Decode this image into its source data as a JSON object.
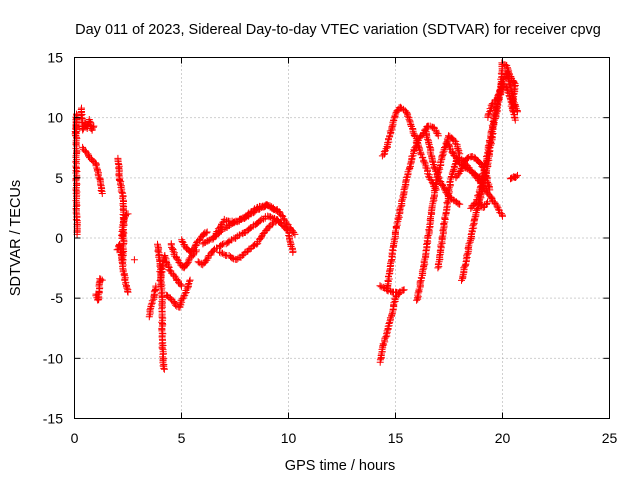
{
  "chart_data": {
    "type": "scatter",
    "title": "Day 011 of 2023, Sidereal Day-to-day VTEC variation (SDTVAR) for receiver cpvg",
    "xlabel": "GPS time / hours",
    "ylabel": "SDTVAR / TECUs",
    "xlim": [
      0,
      25
    ],
    "ylim": [
      -15,
      15
    ],
    "xticks": [
      0,
      5,
      10,
      15,
      20,
      25
    ],
    "yticks": [
      -15,
      -10,
      -5,
      0,
      5,
      10,
      15
    ],
    "grid": true,
    "marker": "+",
    "color": "#ff0000",
    "series": [
      {
        "name": "SDTVAR",
        "tracks": [
          [
            [
              0.05,
              8.5
            ],
            [
              0.1,
              10.3
            ],
            [
              0.08,
              8.0
            ],
            [
              0.1,
              3.0
            ],
            [
              0.12,
              0.3
            ]
          ],
          [
            [
              0.3,
              10.8
            ],
            [
              0.4,
              9.0
            ],
            [
              0.5,
              9.5
            ],
            [
              0.6,
              9.1
            ],
            [
              0.7,
              9.8
            ],
            [
              0.8,
              9.0
            ],
            [
              0.9,
              9.3
            ]
          ],
          [
            [
              0.4,
              7.5
            ],
            [
              0.6,
              7.0
            ],
            [
              0.8,
              6.5
            ],
            [
              1.0,
              6.2
            ],
            [
              1.1,
              5.4
            ],
            [
              1.2,
              4.8
            ],
            [
              1.3,
              3.7
            ]
          ],
          [
            [
              1.0,
              -4.7
            ],
            [
              1.1,
              -5.2
            ],
            [
              1.15,
              -4.5
            ],
            [
              1.2,
              -3.4
            ],
            [
              1.3,
              -3.5
            ]
          ],
          [
            [
              2.05,
              6.6
            ],
            [
              2.1,
              5.0
            ],
            [
              2.2,
              4.2
            ],
            [
              2.3,
              2.5
            ],
            [
              2.3,
              0.5
            ],
            [
              2.25,
              -2.0
            ]
          ],
          [
            [
              2.0,
              -1.0
            ],
            [
              2.1,
              -0.5
            ],
            [
              2.2,
              -1.5
            ],
            [
              2.3,
              -2.8
            ],
            [
              2.4,
              -3.8
            ],
            [
              2.5,
              -4.5
            ]
          ],
          [
            [
              2.2,
              0.0
            ],
            [
              2.3,
              1.5
            ],
            [
              2.4,
              1.9
            ],
            [
              2.5,
              2.0
            ]
          ],
          [
            [
              2.8,
              -1.8
            ]
          ],
          [
            [
              3.5,
              -6.5
            ],
            [
              3.6,
              -5.5
            ],
            [
              3.7,
              -5.0
            ],
            [
              3.8,
              -4.0
            ]
          ],
          [
            [
              3.9,
              -0.5
            ],
            [
              4.0,
              -2.5
            ],
            [
              4.1,
              -5.0
            ],
            [
              4.1,
              -8.0
            ],
            [
              4.15,
              -10.5
            ],
            [
              4.2,
              -10.9
            ]
          ],
          [
            [
              4.0,
              -3.5
            ],
            [
              4.2,
              -1.5
            ],
            [
              4.4,
              -2.5
            ],
            [
              4.6,
              -3.0
            ],
            [
              4.8,
              -3.5
            ],
            [
              5.0,
              -4.0
            ]
          ],
          [
            [
              4.3,
              -4.8
            ],
            [
              4.5,
              -5.0
            ],
            [
              4.7,
              -5.5
            ],
            [
              4.9,
              -5.8
            ],
            [
              5.0,
              -5.2
            ],
            [
              5.2,
              -4.5
            ],
            [
              5.4,
              -3.5
            ]
          ],
          [
            [
              4.5,
              -0.5
            ],
            [
              4.7,
              -1.5
            ],
            [
              4.9,
              -2.0
            ],
            [
              5.1,
              -2.5
            ],
            [
              5.3,
              -2.0
            ],
            [
              5.5,
              -1.5
            ],
            [
              5.7,
              -1.0
            ]
          ],
          [
            [
              5.0,
              -0.2
            ],
            [
              5.2,
              -0.8
            ],
            [
              5.4,
              -1.2
            ],
            [
              5.6,
              -0.8
            ],
            [
              5.8,
              -0.2
            ],
            [
              6.0,
              0.3
            ],
            [
              6.2,
              0.5
            ]
          ],
          [
            [
              5.8,
              -2.0
            ],
            [
              6.0,
              -2.2
            ],
            [
              6.2,
              -1.8
            ],
            [
              6.5,
              -1.0
            ],
            [
              7.0,
              -0.5
            ],
            [
              7.5,
              0.0
            ],
            [
              8.0,
              0.5
            ],
            [
              8.5,
              1.2
            ],
            [
              9.0,
              1.8
            ],
            [
              9.5,
              1.5
            ],
            [
              10.0,
              0.5
            ],
            [
              10.2,
              -1.2
            ]
          ],
          [
            [
              6.0,
              -0.5
            ],
            [
              6.5,
              0.0
            ],
            [
              7.0,
              0.8
            ],
            [
              7.5,
              1.3
            ],
            [
              8.0,
              1.7
            ],
            [
              8.5,
              2.3
            ],
            [
              9.0,
              2.7
            ],
            [
              9.5,
              2.3
            ],
            [
              10.0,
              1.0
            ],
            [
              10.3,
              0.3
            ]
          ],
          [
            [
              6.5,
              0.0
            ],
            [
              7.0,
              1.5
            ],
            [
              7.5,
              1.3
            ],
            [
              8.0,
              1.8
            ],
            [
              8.5,
              2.5
            ],
            [
              9.0,
              2.8
            ],
            [
              9.5,
              2.2
            ]
          ],
          [
            [
              6.8,
              -1.2
            ],
            [
              7.2,
              -1.5
            ],
            [
              7.6,
              -1.8
            ],
            [
              8.0,
              -1.2
            ],
            [
              8.5,
              -0.5
            ],
            [
              9.0,
              0.8
            ],
            [
              9.5,
              1.5
            ]
          ],
          [
            [
              14.3,
              -10.3
            ],
            [
              14.4,
              -9.0
            ],
            [
              14.6,
              -8.0
            ],
            [
              14.8,
              -6.5
            ],
            [
              15.0,
              -5.0
            ],
            [
              15.2,
              -4.5
            ]
          ],
          [
            [
              14.3,
              -4.0
            ],
            [
              14.5,
              -4.2
            ],
            [
              14.8,
              -4.5
            ],
            [
              15.0,
              -4.5
            ],
            [
              15.2,
              -4.5
            ],
            [
              15.4,
              -4.3
            ]
          ],
          [
            [
              14.4,
              6.8
            ],
            [
              14.6,
              7.5
            ],
            [
              14.8,
              9.0
            ],
            [
              15.0,
              10.3
            ],
            [
              15.2,
              10.9
            ],
            [
              15.5,
              10.5
            ],
            [
              15.8,
              9.0
            ],
            [
              16.0,
              8.0
            ],
            [
              16.3,
              6.5
            ],
            [
              16.6,
              5.0
            ],
            [
              16.9,
              4.0
            ]
          ],
          [
            [
              14.6,
              -4.3
            ],
            [
              14.8,
              -2.0
            ],
            [
              15.0,
              0.5
            ],
            [
              15.3,
              3.0
            ],
            [
              15.6,
              5.5
            ],
            [
              15.9,
              7.5
            ],
            [
              16.2,
              8.5
            ],
            [
              16.5,
              9.3
            ],
            [
              16.8,
              9.2
            ],
            [
              17.0,
              8.5
            ]
          ],
          [
            [
              16.0,
              -5.2
            ],
            [
              16.2,
              -3.5
            ],
            [
              16.4,
              -1.5
            ],
            [
              16.6,
              1.0
            ],
            [
              16.8,
              3.5
            ],
            [
              17.0,
              5.5
            ],
            [
              17.3,
              7.5
            ],
            [
              17.5,
              8.5
            ],
            [
              17.8,
              8.0
            ],
            [
              18.0,
              7.0
            ]
          ],
          [
            [
              16.4,
              9.0
            ],
            [
              16.6,
              7.5
            ],
            [
              16.8,
              6.0
            ],
            [
              17.0,
              5.0
            ],
            [
              17.3,
              4.0
            ],
            [
              17.5,
              3.5
            ],
            [
              17.8,
              3.0
            ],
            [
              18.0,
              2.8
            ]
          ],
          [
            [
              17.0,
              -2.5
            ],
            [
              17.3,
              1.5
            ],
            [
              17.6,
              5.0
            ],
            [
              17.9,
              6.7
            ],
            [
              18.2,
              6.4
            ],
            [
              18.6,
              5.4
            ],
            [
              19.0,
              4.6
            ],
            [
              19.4,
              3.5
            ],
            [
              19.8,
              2.5
            ],
            [
              20.0,
              1.8
            ]
          ],
          [
            [
              17.4,
              8.0
            ],
            [
              17.7,
              7.0
            ],
            [
              18.0,
              6.2
            ],
            [
              18.3,
              5.8
            ],
            [
              18.6,
              5.5
            ],
            [
              18.9,
              5.0
            ],
            [
              19.2,
              4.8
            ]
          ],
          [
            [
              17.8,
              5.0
            ],
            [
              18.0,
              5.5
            ],
            [
              18.3,
              6.6
            ],
            [
              18.6,
              6.8
            ],
            [
              18.9,
              6.4
            ],
            [
              19.2,
              5.5
            ],
            [
              19.4,
              4.0
            ]
          ],
          [
            [
              18.1,
              -3.5
            ],
            [
              18.4,
              -1.0
            ],
            [
              18.7,
              1.5
            ],
            [
              19.0,
              3.5
            ],
            [
              19.3,
              6.0
            ],
            [
              19.6,
              9.5
            ],
            [
              19.9,
              12.0
            ],
            [
              20.0,
              14.5
            ],
            [
              20.2,
              14.3
            ],
            [
              20.4,
              13.3
            ],
            [
              20.6,
              12.8
            ],
            [
              20.5,
              11.5
            ],
            [
              20.7,
              10.5
            ]
          ],
          [
            [
              18.5,
              2.5
            ],
            [
              18.8,
              3.0
            ],
            [
              19.0,
              4.5
            ],
            [
              19.3,
              7.0
            ],
            [
              19.5,
              9.0
            ],
            [
              19.7,
              10.8
            ],
            [
              19.9,
              12.3
            ],
            [
              20.1,
              12.7
            ],
            [
              20.3,
              12.0
            ],
            [
              20.5,
              10.5
            ]
          ],
          [
            [
              18.9,
              3.0
            ],
            [
              19.1,
              2.5
            ],
            [
              19.3,
              3.0
            ]
          ],
          [
            [
              19.3,
              10.0
            ],
            [
              19.5,
              11.0
            ],
            [
              19.8,
              11.8
            ],
            [
              20.0,
              13.0
            ],
            [
              20.2,
              13.8
            ],
            [
              20.4,
              12.5
            ],
            [
              20.6,
              9.8
            ]
          ],
          [
            [
              20.4,
              4.9
            ],
            [
              20.5,
              5.1
            ],
            [
              20.6,
              5.0
            ],
            [
              20.7,
              5.2
            ]
          ]
        ]
      }
    ]
  }
}
